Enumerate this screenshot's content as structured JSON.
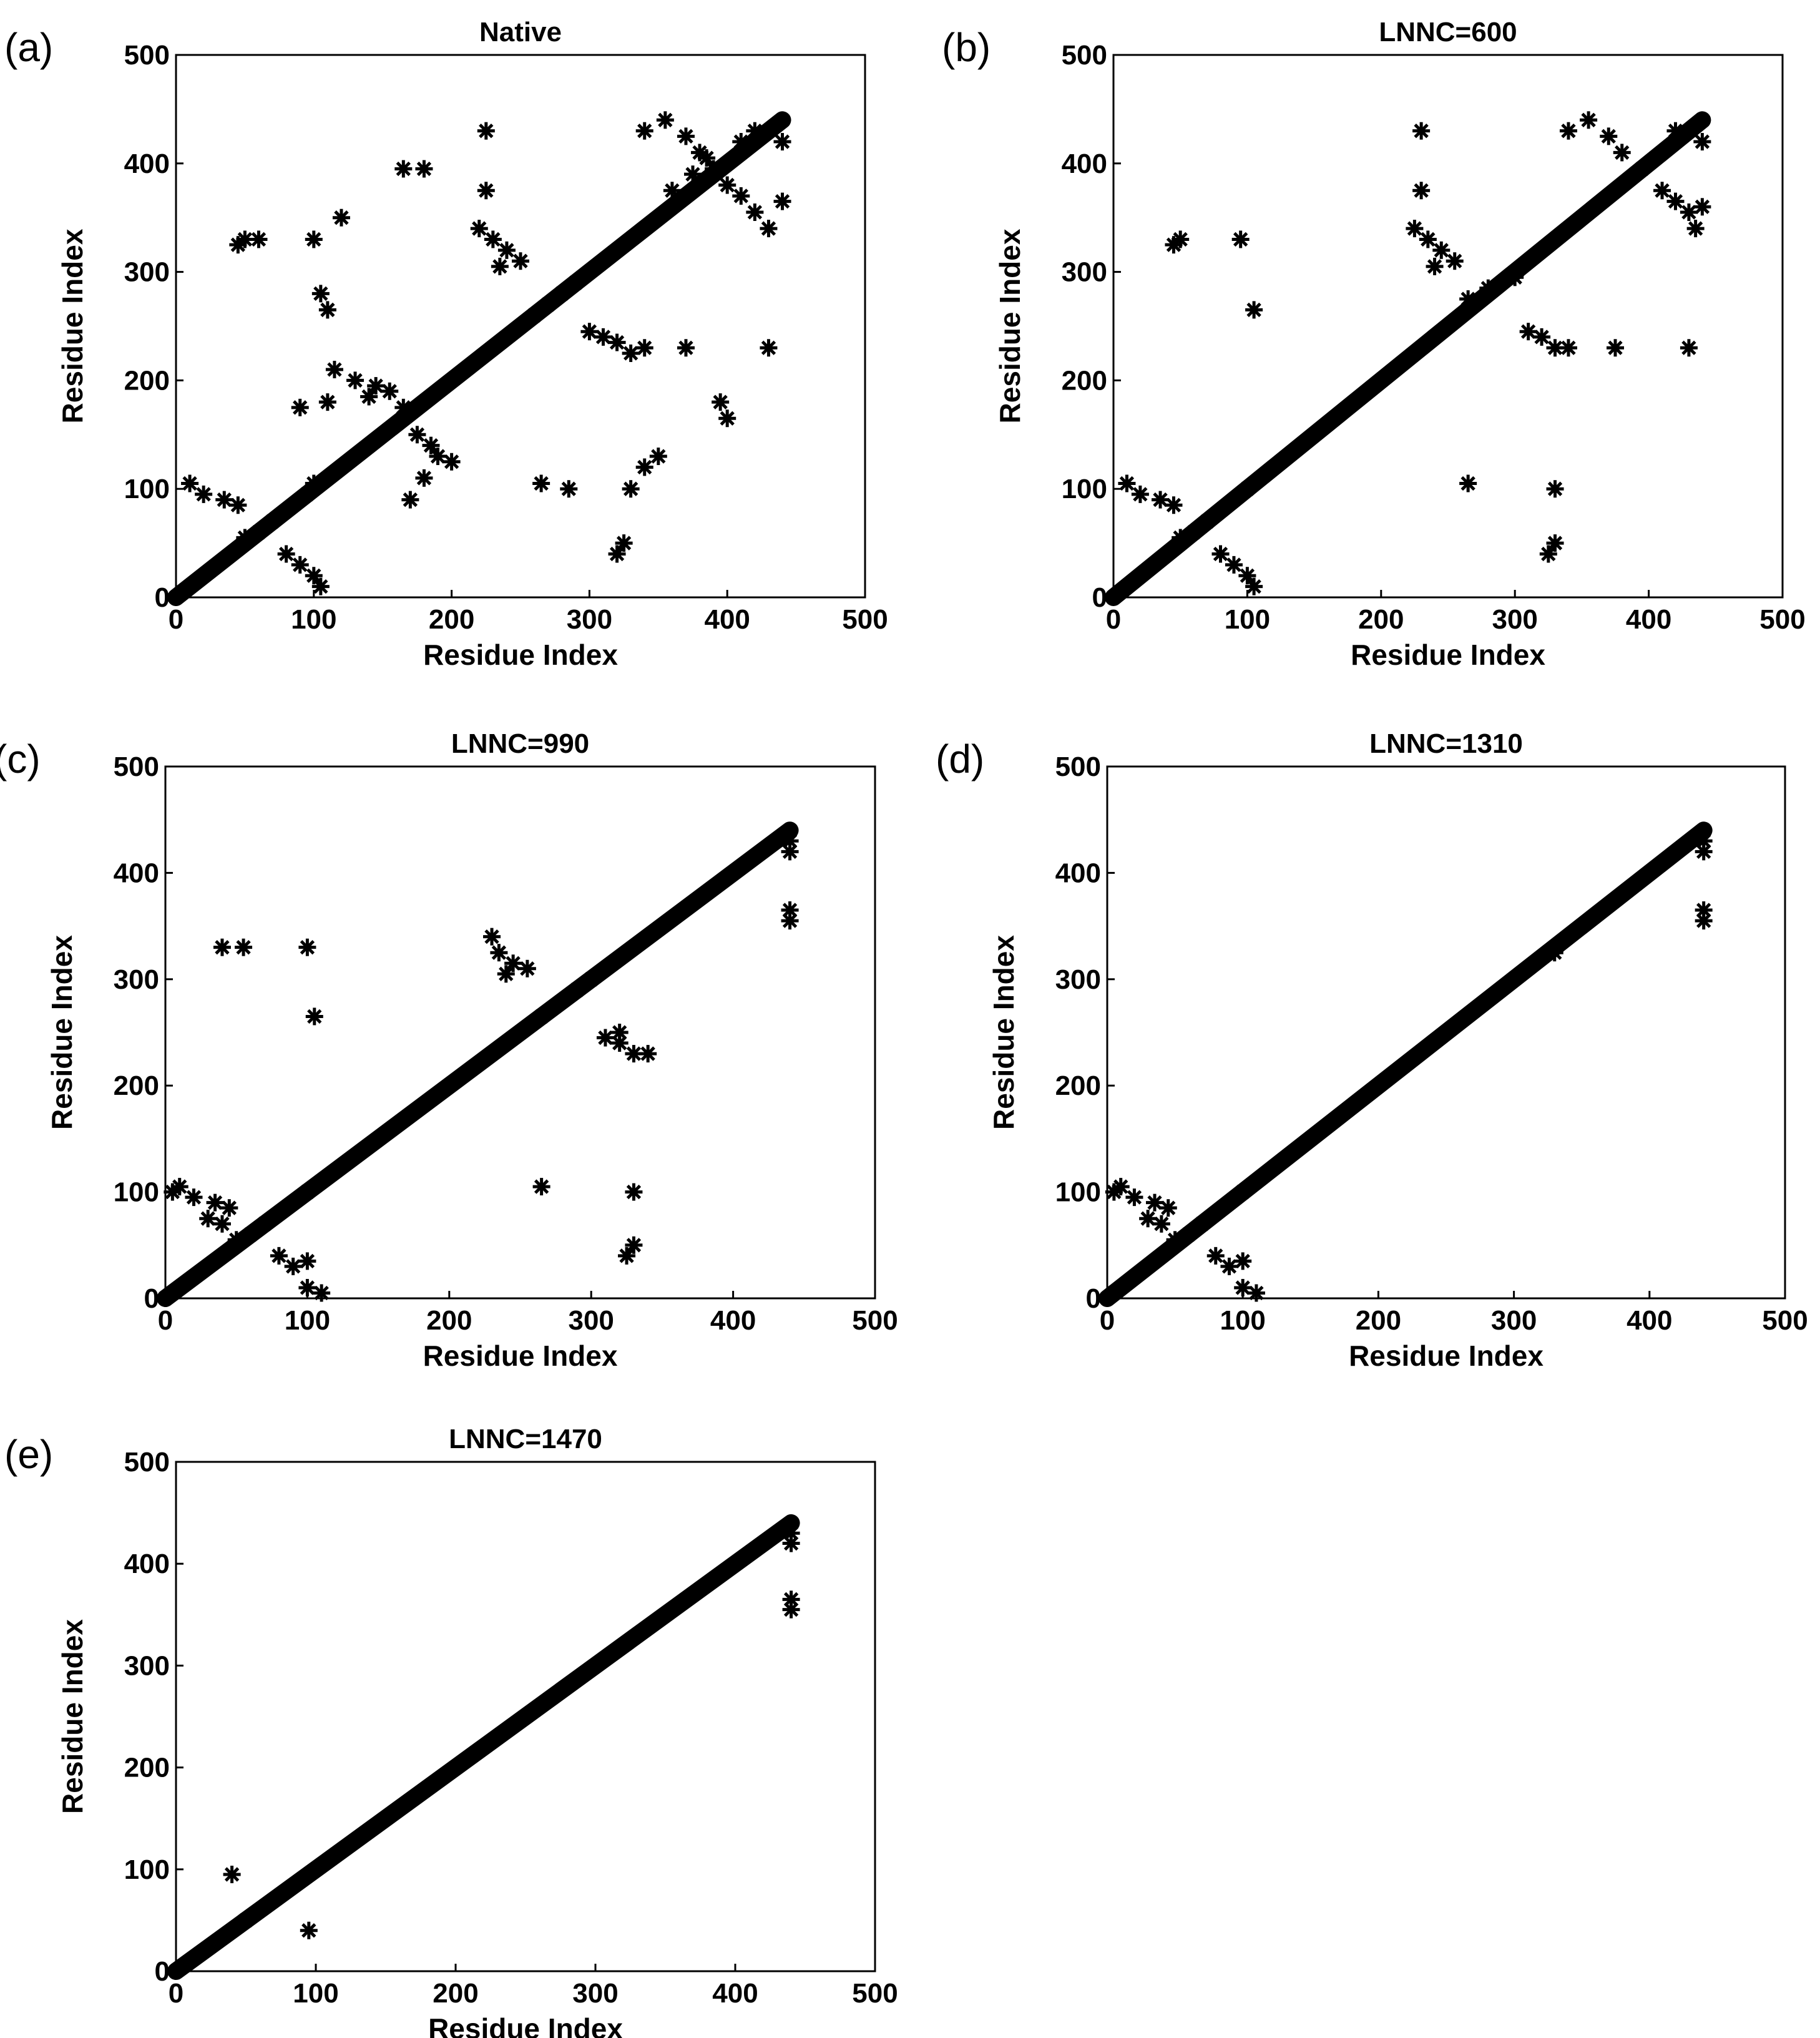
{
  "chart_data": [
    {
      "panel": "(a)",
      "type": "scatter",
      "title": "Native",
      "xlabel": "Residue Index",
      "ylabel": "Residue Index",
      "xlim": [
        0,
        500
      ],
      "ylim": [
        0,
        500
      ],
      "xticks": [
        0,
        100,
        200,
        300,
        400,
        500
      ],
      "yticks": [
        0,
        100,
        200,
        300,
        400,
        500
      ],
      "marker": "*",
      "color": "#000000",
      "diagonal": [
        0,
        440
      ],
      "points": [
        [
          10,
          105
        ],
        [
          20,
          95
        ],
        [
          35,
          90
        ],
        [
          45,
          85
        ],
        [
          50,
          55
        ],
        [
          60,
          60
        ],
        [
          70,
          70
        ],
        [
          80,
          40
        ],
        [
          90,
          30
        ],
        [
          100,
          20
        ],
        [
          105,
          10
        ],
        [
          100,
          105
        ],
        [
          95,
          95
        ],
        [
          90,
          175
        ],
        [
          110,
          180
        ],
        [
          120,
          350
        ],
        [
          115,
          210
        ],
        [
          130,
          200
        ],
        [
          140,
          185
        ],
        [
          50,
          330
        ],
        [
          45,
          325
        ],
        [
          60,
          330
        ],
        [
          100,
          330
        ],
        [
          105,
          280
        ],
        [
          110,
          265
        ],
        [
          145,
          195
        ],
        [
          155,
          190
        ],
        [
          165,
          175
        ],
        [
          175,
          150
        ],
        [
          185,
          140
        ],
        [
          190,
          130
        ],
        [
          200,
          125
        ],
        [
          170,
          90
        ],
        [
          180,
          110
        ],
        [
          165,
          395
        ],
        [
          180,
          395
        ],
        [
          225,
          430
        ],
        [
          225,
          375
        ],
        [
          220,
          340
        ],
        [
          230,
          330
        ],
        [
          240,
          320
        ],
        [
          250,
          310
        ],
        [
          235,
          305
        ],
        [
          260,
          260
        ],
        [
          270,
          270
        ],
        [
          280,
          280
        ],
        [
          290,
          290
        ],
        [
          300,
          245
        ],
        [
          310,
          240
        ],
        [
          320,
          235
        ],
        [
          330,
          225
        ],
        [
          340,
          230
        ],
        [
          265,
          105
        ],
        [
          285,
          100
        ],
        [
          330,
          100
        ],
        [
          325,
          50
        ],
        [
          320,
          40
        ],
        [
          350,
          130
        ],
        [
          340,
          120
        ],
        [
          370,
          230
        ],
        [
          395,
          180
        ],
        [
          400,
          165
        ],
        [
          430,
          230
        ],
        [
          340,
          430
        ],
        [
          355,
          440
        ],
        [
          370,
          425
        ],
        [
          380,
          410
        ],
        [
          390,
          395
        ],
        [
          400,
          380
        ],
        [
          410,
          370
        ],
        [
          420,
          355
        ],
        [
          430,
          340
        ],
        [
          440,
          365
        ],
        [
          360,
          375
        ],
        [
          375,
          390
        ],
        [
          385,
          405
        ],
        [
          410,
          420
        ],
        [
          420,
          430
        ],
        [
          440,
          420
        ]
      ]
    },
    {
      "panel": "(b)",
      "type": "scatter",
      "title": "LNNC=600",
      "xlabel": "Residue Index",
      "ylabel": "Residue Index",
      "xlim": [
        0,
        500
      ],
      "ylim": [
        0,
        500
      ],
      "xticks": [
        0,
        100,
        200,
        300,
        400,
        500
      ],
      "yticks": [
        0,
        100,
        200,
        300,
        400,
        500
      ],
      "marker": "*",
      "color": "#000000",
      "diagonal": [
        0,
        440
      ],
      "points": [
        [
          10,
          105
        ],
        [
          20,
          95
        ],
        [
          35,
          90
        ],
        [
          45,
          85
        ],
        [
          50,
          55
        ],
        [
          60,
          60
        ],
        [
          70,
          70
        ],
        [
          80,
          40
        ],
        [
          90,
          30
        ],
        [
          100,
          20
        ],
        [
          105,
          10
        ],
        [
          100,
          100
        ],
        [
          50,
          330
        ],
        [
          45,
          325
        ],
        [
          95,
          330
        ],
        [
          105,
          265
        ],
        [
          230,
          430
        ],
        [
          230,
          375
        ],
        [
          225,
          340
        ],
        [
          235,
          330
        ],
        [
          245,
          320
        ],
        [
          255,
          310
        ],
        [
          240,
          305
        ],
        [
          265,
          275
        ],
        [
          280,
          285
        ],
        [
          300,
          295
        ],
        [
          310,
          245
        ],
        [
          320,
          240
        ],
        [
          330,
          230
        ],
        [
          340,
          230
        ],
        [
          265,
          105
        ],
        [
          330,
          100
        ],
        [
          330,
          50
        ],
        [
          325,
          40
        ],
        [
          375,
          230
        ],
        [
          430,
          230
        ],
        [
          340,
          430
        ],
        [
          355,
          440
        ],
        [
          370,
          425
        ],
        [
          380,
          410
        ],
        [
          395,
          395
        ],
        [
          410,
          375
        ],
        [
          420,
          365
        ],
        [
          430,
          355
        ],
        [
          440,
          360
        ],
        [
          435,
          340
        ],
        [
          420,
          430
        ],
        [
          440,
          420
        ]
      ]
    },
    {
      "panel": "(c)",
      "type": "scatter",
      "title": "LNNC=990",
      "xlabel": "Residue Index",
      "ylabel": "Residue Index",
      "xlim": [
        0,
        500
      ],
      "ylim": [
        0,
        500
      ],
      "xticks": [
        0,
        100,
        200,
        300,
        400,
        500
      ],
      "yticks": [
        0,
        100,
        200,
        300,
        400,
        500
      ],
      "marker": "*",
      "color": "#000000",
      "diagonal": [
        0,
        440
      ],
      "points": [
        [
          5,
          100
        ],
        [
          10,
          105
        ],
        [
          20,
          95
        ],
        [
          35,
          90
        ],
        [
          45,
          85
        ],
        [
          30,
          75
        ],
        [
          40,
          70
        ],
        [
          50,
          55
        ],
        [
          60,
          60
        ],
        [
          70,
          70
        ],
        [
          80,
          40
        ],
        [
          90,
          30
        ],
        [
          100,
          35
        ],
        [
          100,
          10
        ],
        [
          110,
          5
        ],
        [
          100,
          100
        ],
        [
          40,
          330
        ],
        [
          55,
          330
        ],
        [
          100,
          330
        ],
        [
          105,
          265
        ],
        [
          230,
          340
        ],
        [
          235,
          325
        ],
        [
          245,
          315
        ],
        [
          255,
          310
        ],
        [
          240,
          305
        ],
        [
          265,
          265
        ],
        [
          290,
          290
        ],
        [
          300,
          300
        ],
        [
          310,
          245
        ],
        [
          320,
          240
        ],
        [
          330,
          230
        ],
        [
          340,
          230
        ],
        [
          320,
          250
        ],
        [
          265,
          105
        ],
        [
          330,
          100
        ],
        [
          330,
          50
        ],
        [
          325,
          40
        ],
        [
          440,
          430
        ],
        [
          440,
          420
        ],
        [
          440,
          365
        ],
        [
          440,
          355
        ]
      ]
    },
    {
      "panel": "(d)",
      "type": "scatter",
      "title": "LNNC=1310",
      "xlabel": "Residue Index",
      "ylabel": "Residue Index",
      "xlim": [
        0,
        500
      ],
      "ylim": [
        0,
        500
      ],
      "xticks": [
        0,
        100,
        200,
        300,
        400,
        500
      ],
      "yticks": [
        0,
        100,
        200,
        300,
        400,
        500
      ],
      "marker": "*",
      "color": "#000000",
      "diagonal": [
        0,
        440
      ],
      "points": [
        [
          5,
          100
        ],
        [
          10,
          105
        ],
        [
          20,
          95
        ],
        [
          35,
          90
        ],
        [
          45,
          85
        ],
        [
          30,
          75
        ],
        [
          40,
          70
        ],
        [
          50,
          55
        ],
        [
          60,
          60
        ],
        [
          70,
          70
        ],
        [
          80,
          40
        ],
        [
          90,
          30
        ],
        [
          100,
          35
        ],
        [
          100,
          10
        ],
        [
          110,
          5
        ],
        [
          100,
          100
        ],
        [
          330,
          325
        ],
        [
          440,
          430
        ],
        [
          440,
          420
        ],
        [
          440,
          365
        ],
        [
          440,
          355
        ]
      ]
    },
    {
      "panel": "(e)",
      "type": "scatter",
      "title": "LNNC=1470",
      "xlabel": "Residue Index",
      "ylabel": "Residue Index",
      "xlim": [
        0,
        500
      ],
      "ylim": [
        0,
        500
      ],
      "xticks": [
        0,
        100,
        200,
        300,
        400,
        500
      ],
      "yticks": [
        0,
        100,
        200,
        300,
        400,
        500
      ],
      "marker": "*",
      "color": "#000000",
      "diagonal": [
        0,
        440
      ],
      "points": [
        [
          40,
          95
        ],
        [
          50,
          50
        ],
        [
          95,
          40
        ],
        [
          440,
          430
        ],
        [
          440,
          420
        ],
        [
          440,
          365
        ],
        [
          440,
          355
        ]
      ]
    }
  ]
}
